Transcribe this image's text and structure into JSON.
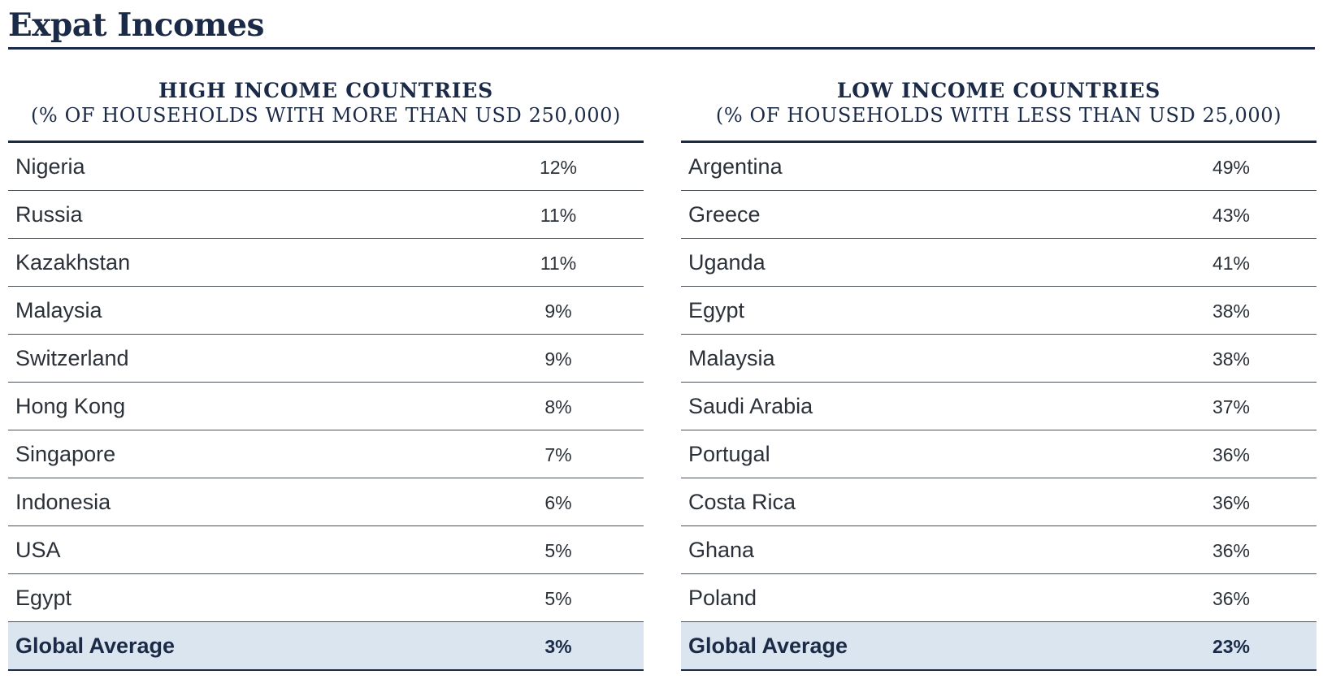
{
  "title": "Expat Incomes",
  "high": {
    "heading": "HIGH INCOME COUNTRIES",
    "subheading": "(% OF HOUSEHOLDS WITH MORE THAN USD 250,000)",
    "rows": [
      {
        "country": "Nigeria",
        "value": "12%"
      },
      {
        "country": "Russia",
        "value": "11%"
      },
      {
        "country": "Kazakhstan",
        "value": "11%"
      },
      {
        "country": "Malaysia",
        "value": "9%"
      },
      {
        "country": "Switzerland",
        "value": "9%"
      },
      {
        "country": "Hong Kong",
        "value": "8%"
      },
      {
        "country": "Singapore",
        "value": "7%"
      },
      {
        "country": "Indonesia",
        "value": "6%"
      },
      {
        "country": "USA",
        "value": "5%"
      },
      {
        "country": "Egypt",
        "value": "5%"
      }
    ],
    "total": {
      "label": "Global Average",
      "value": "3%"
    }
  },
  "low": {
    "heading": "LOW INCOME COUNTRIES",
    "subheading": "(% OF HOUSEHOLDS WITH LESS THAN USD 25,000)",
    "rows": [
      {
        "country": "Argentina",
        "value": "49%"
      },
      {
        "country": "Greece",
        "value": "43%"
      },
      {
        "country": "Uganda",
        "value": "41%"
      },
      {
        "country": "Egypt",
        "value": "38%"
      },
      {
        "country": "Malaysia",
        "value": "38%"
      },
      {
        "country": "Saudi Arabia",
        "value": "37%"
      },
      {
        "country": "Portugal",
        "value": "36%"
      },
      {
        "country": "Costa Rica",
        "value": "36%"
      },
      {
        "country": "Ghana",
        "value": "36%"
      },
      {
        "country": "Poland",
        "value": "36%"
      }
    ],
    "total": {
      "label": "Global Average",
      "value": "23%"
    }
  }
}
